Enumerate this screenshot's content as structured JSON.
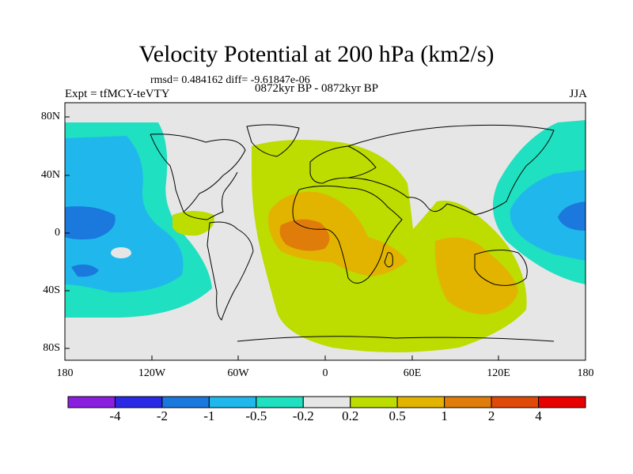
{
  "title": "Velocity Potential at 200 hPa (km2/s)",
  "stats": "rmsd= 0.484162  diff= -9.61847e-06",
  "expt": "Expt = tfMCY-teVTY",
  "period": "0872kyr BP - 0872kyr BP",
  "season": "JJA",
  "y_ticks": [
    "80N",
    "40N",
    "0",
    "40S",
    "80S"
  ],
  "x_ticks": [
    "180",
    "120W",
    "60W",
    "0",
    "60E",
    "120E",
    "180"
  ],
  "colorbar": {
    "labels": [
      "-4",
      "-2",
      "-1",
      "-0.5",
      "-0.2",
      "0.2",
      "0.5",
      "1",
      "2",
      "4"
    ],
    "colors": [
      "#8b1fe0",
      "#2a2ae6",
      "#1b78dc",
      "#20b8ec",
      "#1fe0c0",
      "#e6e6e6",
      "#bddc00",
      "#e2b400",
      "#e07c0a",
      "#e04a08",
      "#e80000"
    ]
  },
  "field_colors": {
    "land": "#e6e6e6",
    "neg_02": "#1fe0c0",
    "neg_05": "#20b8ec",
    "neg_1": "#1b78dc",
    "pos_02": "#bddc00",
    "pos_05": "#e2b400",
    "pos_1": "#e07c0a"
  }
}
